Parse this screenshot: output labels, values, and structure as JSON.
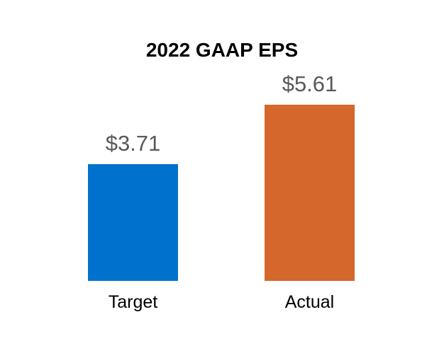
{
  "chart_data": {
    "type": "bar",
    "title": "2022 GAAP EPS",
    "categories": [
      "Target",
      "Actual"
    ],
    "values": [
      3.71,
      5.61
    ],
    "value_labels": [
      "$3.71",
      "$5.61"
    ],
    "ylim": [
      0,
      5.61
    ],
    "grid": false,
    "axes_visible": false,
    "legend_position": "none",
    "colors": {
      "bars": [
        "#0072CE",
        "#D5662C"
      ],
      "title_text": "#000000",
      "value_label_text": "#595959",
      "category_label_text": "#000000",
      "background": "#FFFFFF"
    }
  }
}
